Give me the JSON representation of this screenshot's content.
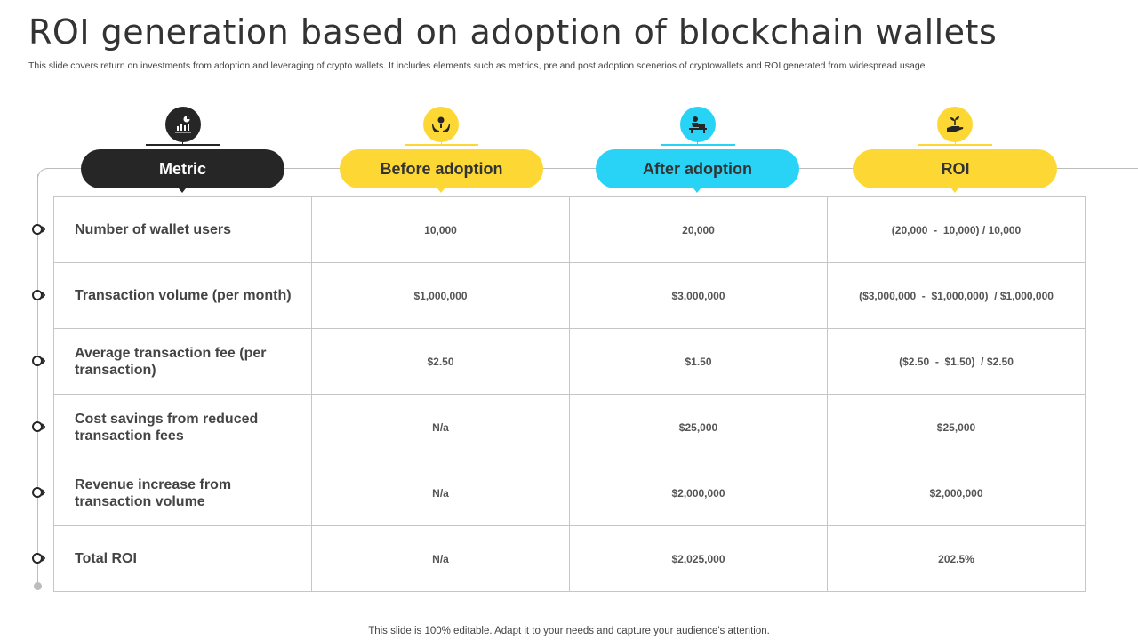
{
  "title": "ROI generation based on adoption of blockchain wallets",
  "subtitle": "This slide covers return on investments from adoption and leveraging of crypto wallets. It includes elements such as metrics, pre and post adoption scenerios of cryptowallets and ROI generated from widespread usage.",
  "footer": "This slide is 100% editable. Adapt it to your needs and capture your audience's attention.",
  "colors": {
    "dark": "#262626",
    "yellow": "#fdd835",
    "cyan": "#29d3f5",
    "line": "#bdbdbd"
  },
  "headers": [
    {
      "label": "Metric",
      "icon": "chart-presentation-icon"
    },
    {
      "label": "Before adoption",
      "icon": "hands-money-icon"
    },
    {
      "label": "After adoption",
      "icon": "person-at-desk-icon"
    },
    {
      "label": "ROI",
      "icon": "hand-plant-icon"
    }
  ],
  "rows": [
    {
      "metric": "Number of wallet users",
      "before": "10,000",
      "after": "20,000",
      "roi": "(20,000  -  10,000) / 10,000"
    },
    {
      "metric": "Transaction volume (per month)",
      "before": "$1,000,000",
      "after": "$3,000,000",
      "roi": "($3,000,000  -  $1,000,000)  / $1,000,000"
    },
    {
      "metric": "Average transaction fee (per transaction)",
      "before": "$2.50",
      "after": "$1.50",
      "roi": "($2.50  -  $1.50)  / $2.50"
    },
    {
      "metric": "Cost savings from reduced  transaction fees",
      "before": "N/a",
      "after": "$25,000",
      "roi": "$25,000"
    },
    {
      "metric": "Revenue increase from transaction volume",
      "before": "N/a",
      "after": "$2,000,000",
      "roi": "$2,000,000"
    },
    {
      "metric": "Total ROI",
      "before": "N/a",
      "after": "$2,025,000",
      "roi": "202.5%"
    }
  ]
}
